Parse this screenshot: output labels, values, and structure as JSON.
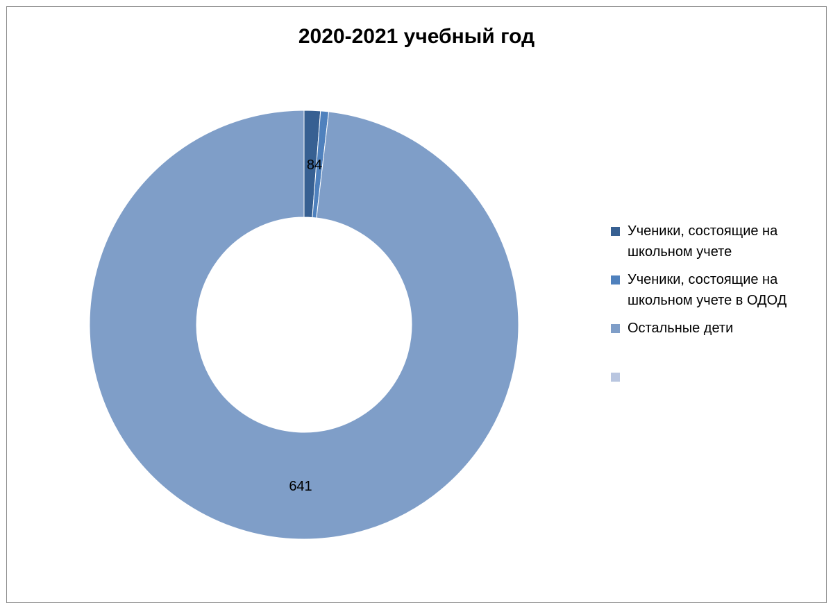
{
  "chart_data": {
    "type": "pie",
    "title": "2020-2021 учебный год",
    "categories": [
      "Ученики, состоящие на школьном учете",
      "Ученики, состоящие на школьном учете в ОДОД",
      "Остальные дети",
      ""
    ],
    "values": [
      8,
      4,
      641,
      0
    ],
    "data_labels": [
      "8",
      "4",
      "641",
      ""
    ],
    "colors": [
      "#376092",
      "#4f81bd",
      "#7f9ec8",
      "#b9c6e0"
    ],
    "style": "donut",
    "legend_position": "right"
  }
}
